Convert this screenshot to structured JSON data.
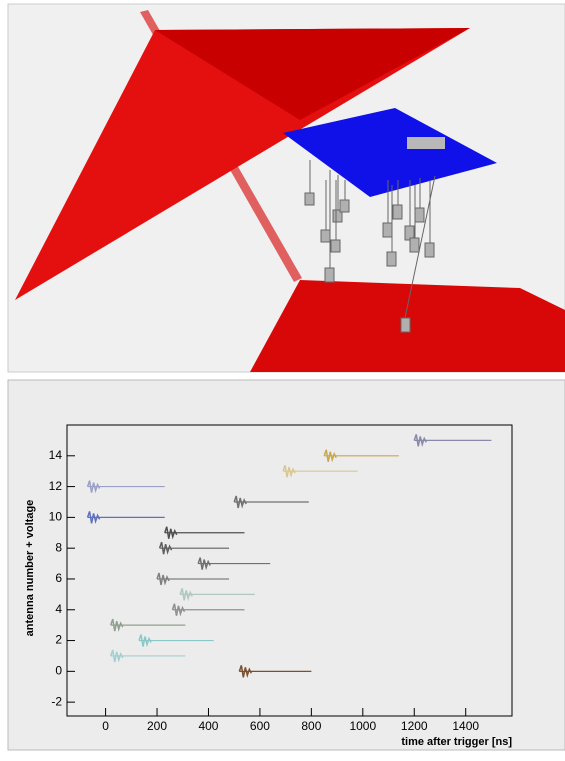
{
  "chart_data": {
    "type": "traces",
    "xlabel": "time after trigger [ns]",
    "ylabel": "antenna number + voltage",
    "xlim": [
      -150,
      1580
    ],
    "ylim": [
      -2.9,
      16
    ],
    "xticks": [
      0,
      200,
      400,
      600,
      800,
      1000,
      1200,
      1400
    ],
    "yticks": [
      -2,
      0,
      2,
      4,
      6,
      8,
      10,
      12,
      14
    ],
    "series": [
      {
        "color": "#8a8aa8",
        "x": [
          1200,
          1500
        ],
        "values": [
          15,
          15
        ]
      },
      {
        "color": "#c8a850",
        "x": [
          850,
          1140
        ],
        "values": [
          14,
          14
        ]
      },
      {
        "color": "#d8c890",
        "x": [
          690,
          980
        ],
        "values": [
          13,
          13
        ]
      },
      {
        "color": "#9aa0c8",
        "x": [
          -70,
          230
        ],
        "values": [
          12,
          12
        ]
      },
      {
        "color": "#707070",
        "x": [
          500,
          790
        ],
        "values": [
          11,
          11
        ]
      },
      {
        "color": "#6070c0",
        "x": [
          -70,
          230
        ],
        "values": [
          10,
          10
        ]
      },
      {
        "color": "#505050",
        "x": [
          230,
          540
        ],
        "values": [
          9,
          9
        ]
      },
      {
        "color": "#606060",
        "x": [
          210,
          480
        ],
        "values": [
          8,
          8
        ]
      },
      {
        "color": "#707070",
        "x": [
          360,
          640
        ],
        "values": [
          7,
          7
        ]
      },
      {
        "color": "#808080",
        "x": [
          200,
          480
        ],
        "values": [
          6,
          6
        ]
      },
      {
        "color": "#b0c8c0",
        "x": [
          290,
          580
        ],
        "values": [
          5,
          5
        ]
      },
      {
        "color": "#909090",
        "x": [
          260,
          540
        ],
        "values": [
          4,
          4
        ]
      },
      {
        "color": "#90a090",
        "x": [
          20,
          310
        ],
        "values": [
          3,
          3
        ]
      },
      {
        "color": "#8ac8c8",
        "x": [
          130,
          420
        ],
        "values": [
          2,
          2
        ]
      },
      {
        "color": "#a0d0d0",
        "x": [
          20,
          310
        ],
        "values": [
          1,
          1
        ]
      },
      {
        "color": "#7a5030",
        "x": [
          520,
          800
        ],
        "values": [
          0,
          0
        ]
      }
    ]
  }
}
